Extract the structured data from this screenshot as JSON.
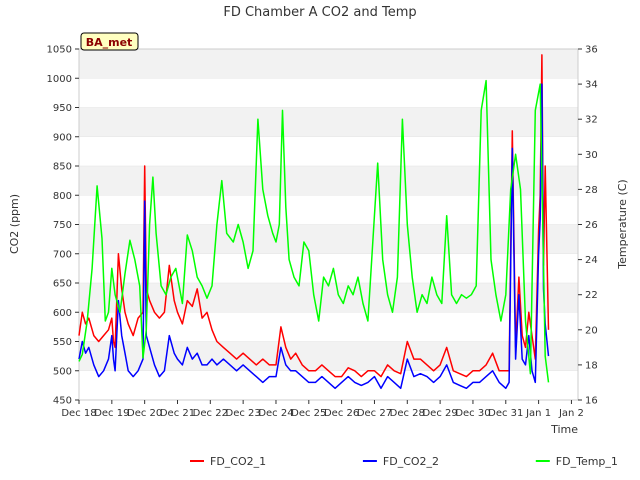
{
  "chart_data": {
    "type": "line",
    "title": "FD Chamber A CO2 and Temp",
    "xlabel": "Time",
    "ylabel": "CO2 (ppm)",
    "y2label": "Temperature (C)",
    "site_badge": "BA_met",
    "xlim": [
      0,
      15.2
    ],
    "ylim": [
      450,
      1050
    ],
    "y2lim": [
      16,
      36
    ],
    "x_ticks": [
      0,
      1,
      2,
      3,
      4,
      5,
      6,
      7,
      8,
      9,
      10,
      11,
      12,
      13,
      14,
      15
    ],
    "x_tick_labels": [
      "Dec 18",
      "Dec 19",
      "Dec 20",
      "Dec 21",
      "Dec 22",
      "Dec 23",
      "Dec 24",
      "Dec 25",
      "Dec 26",
      "Dec 27",
      "Dec 28",
      "Dec 29",
      "Dec 30",
      "Dec 31",
      "Jan 1",
      "Jan 2"
    ],
    "y_ticks": [
      450,
      500,
      550,
      600,
      650,
      700,
      750,
      800,
      850,
      900,
      950,
      1000,
      1050
    ],
    "y2_ticks": [
      16,
      18,
      20,
      22,
      24,
      26,
      28,
      30,
      32,
      34,
      36
    ],
    "grid": "horizontal bands",
    "legend_position": "bottom",
    "colors": {
      "FD_CO2_1": "#ff0000",
      "FD_CO2_2": "#0000ff",
      "FD_Temp_1": "#00ff00",
      "band": "#f2f2f2",
      "badge_fill": "#ffffc0",
      "badge_text": "#8b0000"
    },
    "series": [
      {
        "name": "FD_CO2_1",
        "axis": "left",
        "x": [
          0.0,
          0.1,
          0.2,
          0.3,
          0.45,
          0.6,
          0.75,
          0.9,
          1.0,
          1.05,
          1.1,
          1.2,
          1.3,
          1.4,
          1.5,
          1.65,
          1.8,
          1.95,
          2.0,
          2.05,
          2.15,
          2.3,
          2.45,
          2.6,
          2.75,
          2.9,
          3.0,
          3.15,
          3.3,
          3.45,
          3.6,
          3.75,
          3.9,
          4.05,
          4.2,
          4.4,
          4.6,
          4.8,
          5.0,
          5.2,
          5.4,
          5.6,
          5.8,
          6.0,
          6.15,
          6.3,
          6.45,
          6.6,
          6.8,
          7.0,
          7.2,
          7.4,
          7.6,
          7.8,
          8.0,
          8.2,
          8.4,
          8.6,
          8.8,
          9.0,
          9.2,
          9.4,
          9.6,
          9.8,
          10.0,
          10.2,
          10.4,
          10.6,
          10.8,
          11.0,
          11.2,
          11.4,
          11.6,
          11.8,
          12.0,
          12.2,
          12.4,
          12.6,
          12.8,
          13.0,
          13.1,
          13.2,
          13.3,
          13.4,
          13.5,
          13.6,
          13.7,
          13.8,
          13.9,
          14.0,
          14.05,
          14.1,
          14.15,
          14.2,
          14.3
        ],
        "y": [
          560,
          600,
          580,
          590,
          560,
          550,
          560,
          570,
          590,
          550,
          540,
          700,
          640,
          600,
          580,
          560,
          590,
          600,
          850,
          640,
          620,
          600,
          590,
          600,
          680,
          620,
          600,
          580,
          620,
          610,
          640,
          590,
          600,
          570,
          550,
          540,
          530,
          520,
          530,
          520,
          510,
          520,
          510,
          510,
          575,
          540,
          520,
          530,
          510,
          500,
          500,
          510,
          500,
          490,
          490,
          505,
          500,
          490,
          500,
          500,
          490,
          510,
          500,
          495,
          550,
          520,
          520,
          510,
          500,
          510,
          540,
          500,
          495,
          490,
          500,
          500,
          510,
          530,
          500,
          500,
          500,
          910,
          540,
          660,
          560,
          540,
          600,
          560,
          520,
          740,
          800,
          1040,
          680,
          850,
          570
        ]
      },
      {
        "name": "FD_CO2_2",
        "axis": "left",
        "x": [
          0.0,
          0.1,
          0.2,
          0.3,
          0.45,
          0.6,
          0.75,
          0.9,
          1.0,
          1.05,
          1.1,
          1.2,
          1.3,
          1.4,
          1.5,
          1.65,
          1.8,
          1.95,
          2.0,
          2.05,
          2.15,
          2.3,
          2.45,
          2.6,
          2.75,
          2.9,
          3.0,
          3.15,
          3.3,
          3.45,
          3.6,
          3.75,
          3.9,
          4.05,
          4.2,
          4.4,
          4.6,
          4.8,
          5.0,
          5.2,
          5.4,
          5.6,
          5.8,
          6.0,
          6.15,
          6.3,
          6.45,
          6.6,
          6.8,
          7.0,
          7.2,
          7.4,
          7.6,
          7.8,
          8.0,
          8.2,
          8.4,
          8.6,
          8.8,
          9.0,
          9.2,
          9.4,
          9.6,
          9.8,
          10.0,
          10.2,
          10.4,
          10.6,
          10.8,
          11.0,
          11.2,
          11.4,
          11.6,
          11.8,
          12.0,
          12.2,
          12.4,
          12.6,
          12.8,
          13.0,
          13.1,
          13.2,
          13.3,
          13.4,
          13.5,
          13.6,
          13.7,
          13.8,
          13.9,
          14.0,
          14.05,
          14.1,
          14.15,
          14.2,
          14.3
        ],
        "y": [
          520,
          550,
          530,
          540,
          510,
          490,
          500,
          520,
          560,
          520,
          500,
          620,
          560,
          530,
          500,
          490,
          500,
          520,
          790,
          560,
          540,
          510,
          490,
          500,
          560,
          530,
          520,
          510,
          540,
          520,
          530,
          510,
          510,
          520,
          510,
          520,
          510,
          500,
          510,
          500,
          490,
          480,
          490,
          490,
          540,
          510,
          500,
          500,
          490,
          480,
          480,
          490,
          480,
          470,
          480,
          490,
          480,
          475,
          480,
          490,
          470,
          490,
          480,
          470,
          520,
          490,
          495,
          490,
          480,
          490,
          510,
          480,
          475,
          470,
          480,
          480,
          490,
          500,
          480,
          470,
          480,
          880,
          520,
          630,
          520,
          510,
          560,
          500,
          480,
          700,
          760,
          990,
          640,
          580,
          525
        ]
      },
      {
        "name": "FD_Temp_1",
        "axis": "right",
        "x": [
          0.0,
          0.1,
          0.25,
          0.4,
          0.55,
          0.7,
          0.8,
          0.9,
          1.0,
          1.1,
          1.25,
          1.4,
          1.55,
          1.7,
          1.85,
          1.95,
          2.05,
          2.15,
          2.25,
          2.35,
          2.5,
          2.65,
          2.8,
          2.95,
          3.05,
          3.15,
          3.3,
          3.45,
          3.6,
          3.75,
          3.9,
          4.05,
          4.2,
          4.35,
          4.5,
          4.7,
          4.85,
          5.0,
          5.15,
          5.3,
          5.45,
          5.6,
          5.75,
          5.9,
          6.0,
          6.1,
          6.2,
          6.3,
          6.4,
          6.55,
          6.7,
          6.85,
          7.0,
          7.15,
          7.3,
          7.45,
          7.6,
          7.75,
          7.9,
          8.05,
          8.2,
          8.35,
          8.5,
          8.65,
          8.8,
          8.95,
          9.1,
          9.25,
          9.4,
          9.55,
          9.7,
          9.85,
          10.0,
          10.15,
          10.3,
          10.45,
          10.6,
          10.75,
          10.9,
          11.05,
          11.2,
          11.35,
          11.5,
          11.65,
          11.8,
          11.95,
          12.1,
          12.25,
          12.4,
          12.55,
          12.7,
          12.85,
          13.0,
          13.15,
          13.3,
          13.45,
          13.6,
          13.75,
          13.9,
          14.05,
          14.2,
          14.3
        ],
        "y": [
          18.2,
          18.6,
          20.5,
          23.5,
          28.2,
          25.2,
          20.5,
          21.0,
          23.5,
          22.0,
          21.0,
          23.2,
          25.1,
          24.0,
          22.5,
          18.4,
          20.0,
          26.0,
          28.7,
          25.5,
          22.5,
          22.0,
          23.0,
          23.5,
          22.5,
          21.5,
          25.4,
          24.5,
          23.0,
          22.5,
          21.8,
          22.5,
          26.0,
          28.5,
          25.5,
          25.0,
          26.0,
          25.0,
          23.5,
          24.5,
          32.0,
          28.0,
          26.5,
          25.5,
          25.0,
          26.0,
          32.5,
          27.0,
          24.0,
          23.0,
          22.5,
          25.0,
          24.5,
          22.0,
          20.5,
          23.0,
          22.5,
          23.5,
          22.0,
          21.5,
          22.5,
          22.0,
          23.0,
          21.5,
          20.5,
          25.0,
          29.5,
          24.0,
          22.0,
          21.0,
          23.0,
          32.0,
          26.0,
          23.0,
          21.0,
          22.0,
          21.5,
          23.0,
          22.0,
          21.5,
          26.5,
          22.0,
          21.5,
          22.0,
          21.8,
          22.0,
          22.5,
          32.5,
          34.2,
          24.0,
          22.0,
          20.5,
          22.0,
          28.0,
          30.0,
          28.0,
          20.5,
          17.5,
          32.5,
          34.0,
          18.5,
          17.0
        ]
      }
    ]
  }
}
